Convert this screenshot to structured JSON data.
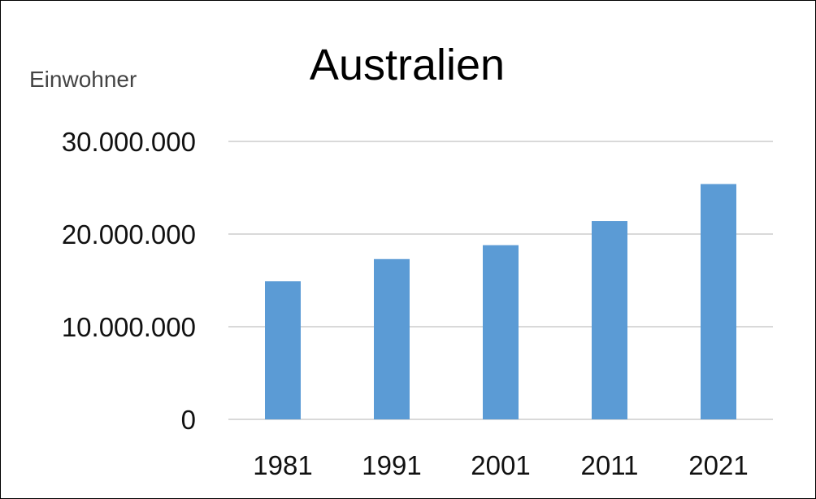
{
  "chart_data": {
    "type": "bar",
    "title": "Australien",
    "xlabel": "",
    "ylabel": "Einwohner",
    "categories": [
      "1981",
      "1991",
      "2001",
      "2011",
      "2021"
    ],
    "values": [
      14900000,
      17300000,
      18800000,
      21400000,
      25400000
    ],
    "ylim": [
      0,
      30000000
    ],
    "yticks": [
      0,
      10000000,
      20000000,
      30000000
    ],
    "ytick_labels": [
      "0",
      "10.000.000",
      "20.000.000",
      "30.000.000"
    ],
    "grid": true,
    "legend": "none",
    "colors": {
      "bar": "#5b9bd5",
      "grid": "#d9d9d9"
    }
  }
}
